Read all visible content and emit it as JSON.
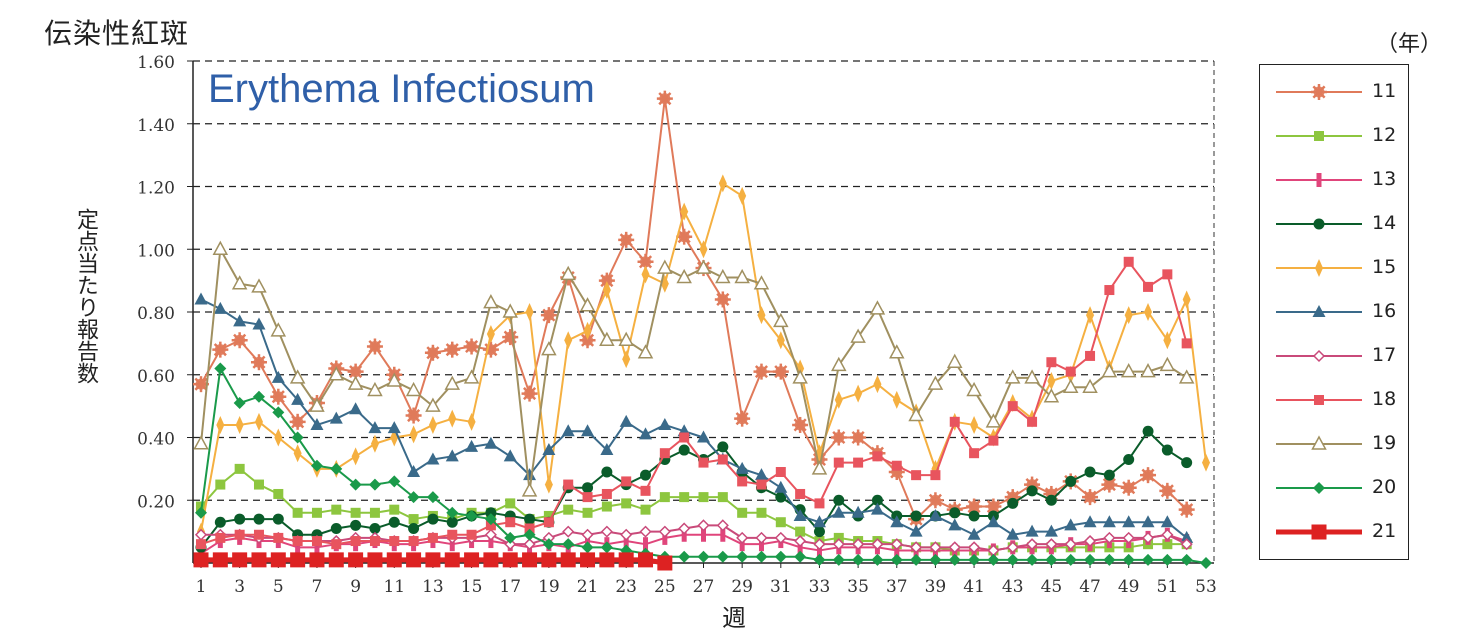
{
  "page": {
    "title_jp": "伝染性紅斑",
    "year_unit_label": "（年）"
  },
  "chart_data": {
    "type": "line",
    "title": "Erythema Infectiosum",
    "xlabel": "週",
    "ylabel": "定点当たり報告数",
    "ylim": [
      0,
      1.6
    ],
    "xlim": [
      1,
      53
    ],
    "grid": "horizontal-dashed",
    "legend_title": "（年）",
    "legend_position": "right",
    "y_ticks": [
      "0.20",
      "0.40",
      "0.60",
      "0.80",
      "1.00",
      "1.20",
      "1.40",
      "1.60"
    ],
    "y_tick_values": [
      0.2,
      0.4,
      0.6,
      0.8,
      1.0,
      1.2,
      1.4,
      1.6
    ],
    "x_ticks": [
      "1",
      "3",
      "5",
      "7",
      "9",
      "11",
      "13",
      "15",
      "17",
      "19",
      "21",
      "23",
      "25",
      "27",
      "29",
      "31",
      "33",
      "35",
      "37",
      "39",
      "41",
      "43",
      "45",
      "47",
      "49",
      "51",
      "53"
    ],
    "x_tick_values": [
      1,
      3,
      5,
      7,
      9,
      11,
      13,
      15,
      17,
      19,
      21,
      23,
      25,
      27,
      29,
      31,
      33,
      35,
      37,
      39,
      41,
      43,
      45,
      47,
      49,
      51,
      53
    ],
    "series": [
      {
        "name": "11",
        "color": "#e07a5a",
        "marker": "star",
        "values": [
          0.57,
          0.68,
          0.71,
          0.64,
          0.53,
          0.45,
          0.51,
          0.62,
          0.61,
          0.69,
          0.6,
          0.47,
          0.67,
          0.68,
          0.69,
          0.68,
          0.72,
          0.54,
          0.79,
          0.91,
          0.71,
          0.9,
          1.03,
          0.96,
          1.48,
          1.04,
          0.94,
          0.84,
          0.46,
          0.61,
          0.61,
          0.44,
          0.33,
          0.4,
          0.4,
          0.35,
          0.29,
          0.14,
          0.2,
          0.17,
          0.18,
          0.18,
          0.21,
          0.25,
          0.22,
          0.26,
          0.21,
          0.25,
          0.24,
          0.28,
          0.23,
          0.17
        ]
      },
      {
        "name": "12",
        "color": "#8dc63f",
        "marker": "square",
        "values": [
          0.18,
          0.25,
          0.3,
          0.25,
          0.22,
          0.16,
          0.16,
          0.17,
          0.16,
          0.16,
          0.17,
          0.14,
          0.15,
          0.14,
          0.16,
          0.16,
          0.19,
          0.14,
          0.15,
          0.17,
          0.16,
          0.18,
          0.19,
          0.17,
          0.21,
          0.21,
          0.21,
          0.21,
          0.16,
          0.16,
          0.13,
          0.1,
          0.07,
          0.08,
          0.07,
          0.07,
          0.06,
          0.05,
          0.05,
          0.04,
          0.04,
          0.04,
          0.05,
          0.05,
          0.05,
          0.05,
          0.05,
          0.05,
          0.05,
          0.06,
          0.06,
          0.06
        ]
      },
      {
        "name": "13",
        "color": "#e0457b",
        "marker": "bar",
        "values": [
          0.03,
          0.07,
          0.08,
          0.07,
          0.07,
          0.05,
          0.05,
          0.06,
          0.06,
          0.07,
          0.06,
          0.06,
          0.07,
          0.06,
          0.07,
          0.07,
          0.06,
          0.05,
          0.06,
          0.05,
          0.07,
          0.06,
          0.07,
          0.06,
          0.08,
          0.09,
          0.09,
          0.09,
          0.06,
          0.06,
          0.07,
          0.05,
          0.04,
          0.05,
          0.05,
          0.05,
          0.04,
          0.04,
          0.04,
          0.04,
          0.04,
          0.04,
          0.05,
          0.05,
          0.05,
          0.06,
          0.06,
          0.07,
          0.07,
          0.08,
          0.09,
          0.07
        ]
      },
      {
        "name": "14",
        "color": "#0a5c2a",
        "marker": "circle",
        "values": [
          0.05,
          0.13,
          0.14,
          0.14,
          0.14,
          0.09,
          0.09,
          0.11,
          0.12,
          0.11,
          0.13,
          0.11,
          0.14,
          0.13,
          0.15,
          0.16,
          0.15,
          0.14,
          0.13,
          0.24,
          0.24,
          0.29,
          0.25,
          0.28,
          0.33,
          0.36,
          0.33,
          0.37,
          0.29,
          0.24,
          0.21,
          0.17,
          0.1,
          0.2,
          0.15,
          0.2,
          0.15,
          0.15,
          0.15,
          0.16,
          0.15,
          0.15,
          0.19,
          0.23,
          0.2,
          0.26,
          0.29,
          0.28,
          0.33,
          0.42,
          0.36,
          0.32
        ]
      },
      {
        "name": "15",
        "color": "#f5b041",
        "marker": "diamond-thin",
        "values": [
          0.1,
          0.44,
          0.44,
          0.45,
          0.4,
          0.35,
          0.3,
          0.3,
          0.34,
          0.38,
          0.4,
          0.41,
          0.44,
          0.46,
          0.45,
          0.73,
          0.79,
          0.8,
          0.25,
          0.71,
          0.74,
          0.87,
          0.65,
          0.92,
          0.89,
          1.12,
          1.0,
          1.21,
          1.17,
          0.79,
          0.71,
          0.62,
          0.35,
          0.52,
          0.54,
          0.57,
          0.52,
          0.48,
          0.3,
          0.45,
          0.44,
          0.4,
          0.51,
          0.46,
          0.58,
          0.6,
          0.79,
          0.62,
          0.79,
          0.8,
          0.71,
          0.84,
          0.32
        ]
      },
      {
        "name": "16",
        "color": "#3a6a8a",
        "marker": "triangle",
        "values": [
          0.84,
          0.81,
          0.77,
          0.76,
          0.59,
          0.52,
          0.44,
          0.46,
          0.49,
          0.43,
          0.43,
          0.29,
          0.33,
          0.34,
          0.37,
          0.38,
          0.34,
          0.28,
          0.36,
          0.42,
          0.42,
          0.36,
          0.45,
          0.41,
          0.44,
          0.42,
          0.4,
          0.33,
          0.3,
          0.28,
          0.24,
          0.15,
          0.13,
          0.16,
          0.16,
          0.17,
          0.13,
          0.1,
          0.15,
          0.12,
          0.09,
          0.13,
          0.09,
          0.1,
          0.1,
          0.12,
          0.13,
          0.13,
          0.13,
          0.13,
          0.13,
          0.08
        ]
      },
      {
        "name": "17",
        "color": "#c94a7a",
        "marker": "diamond-open",
        "values": [
          0.09,
          0.09,
          0.09,
          0.08,
          0.08,
          0.07,
          0.07,
          0.07,
          0.08,
          0.08,
          0.07,
          0.07,
          0.08,
          0.08,
          0.08,
          0.09,
          0.06,
          0.06,
          0.08,
          0.1,
          0.09,
          0.1,
          0.09,
          0.1,
          0.1,
          0.11,
          0.12,
          0.12,
          0.08,
          0.08,
          0.08,
          0.07,
          0.06,
          0.06,
          0.06,
          0.06,
          0.06,
          0.05,
          0.05,
          0.05,
          0.05,
          0.04,
          0.05,
          0.06,
          0.06,
          0.06,
          0.07,
          0.08,
          0.08,
          0.08,
          0.09,
          0.06
        ]
      },
      {
        "name": "18",
        "color": "#e8545e",
        "marker": "square",
        "values": [
          0.06,
          0.08,
          0.09,
          0.09,
          0.08,
          0.07,
          0.07,
          0.06,
          0.07,
          0.07,
          0.07,
          0.07,
          0.08,
          0.09,
          0.09,
          0.12,
          0.13,
          0.11,
          0.13,
          0.25,
          0.21,
          0.22,
          0.26,
          0.23,
          0.35,
          0.4,
          0.32,
          0.33,
          0.26,
          0.25,
          0.29,
          0.22,
          0.19,
          0.32,
          0.32,
          0.34,
          0.31,
          0.28,
          0.28,
          0.45,
          0.35,
          0.39,
          0.5,
          0.45,
          0.64,
          0.61,
          0.66,
          0.87,
          0.96,
          0.88,
          0.92,
          0.7
        ]
      },
      {
        "name": "19",
        "color": "#a09060",
        "marker": "triangle-open",
        "values": [
          0.38,
          1.0,
          0.89,
          0.88,
          0.74,
          0.59,
          0.5,
          0.6,
          0.57,
          0.55,
          0.58,
          0.55,
          0.5,
          0.57,
          0.59,
          0.83,
          0.8,
          0.23,
          0.68,
          0.92,
          0.82,
          0.71,
          0.71,
          0.67,
          0.94,
          0.91,
          0.94,
          0.91,
          0.91,
          0.89,
          0.77,
          0.59,
          0.3,
          0.63,
          0.72,
          0.81,
          0.67,
          0.47,
          0.57,
          0.64,
          0.55,
          0.45,
          0.59,
          0.59,
          0.53,
          0.56,
          0.56,
          0.61,
          0.61,
          0.61,
          0.63,
          0.59
        ]
      },
      {
        "name": "20",
        "color": "#1a9a4a",
        "marker": "diamond",
        "values": [
          0.16,
          0.62,
          0.51,
          0.53,
          0.48,
          0.4,
          0.31,
          0.3,
          0.25,
          0.25,
          0.26,
          0.21,
          0.21,
          0.16,
          0.15,
          0.14,
          0.08,
          0.09,
          0.06,
          0.06,
          0.05,
          0.05,
          0.04,
          0.03,
          0.02,
          0.02,
          0.02,
          0.02,
          0.02,
          0.02,
          0.02,
          0.02,
          0.01,
          0.01,
          0.01,
          0.01,
          0.01,
          0.01,
          0.01,
          0.01,
          0.01,
          0.01,
          0.01,
          0.01,
          0.01,
          0.01,
          0.01,
          0.01,
          0.01,
          0.01,
          0.01,
          0.01,
          0.0
        ]
      },
      {
        "name": "21",
        "color": "#dd2222",
        "marker": "square-bold",
        "values": [
          0.01,
          0.01,
          0.01,
          0.01,
          0.01,
          0.01,
          0.01,
          0.01,
          0.01,
          0.01,
          0.01,
          0.01,
          0.01,
          0.01,
          0.01,
          0.01,
          0.01,
          0.01,
          0.01,
          0.01,
          0.01,
          0.01,
          0.01,
          0.01,
          0.0
        ]
      }
    ]
  }
}
